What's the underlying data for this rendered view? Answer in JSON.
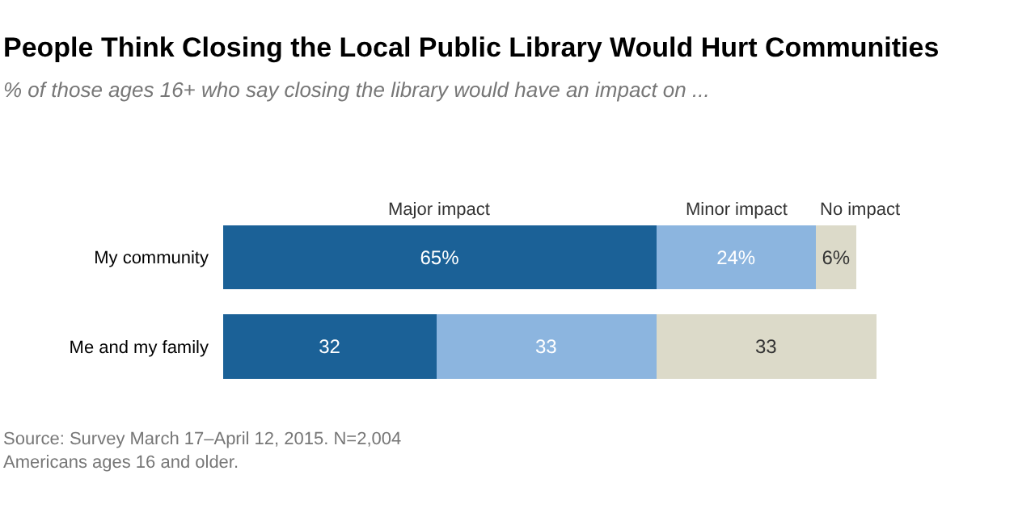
{
  "chart_data": {
    "type": "bar",
    "orientation": "horizontal",
    "stacked": true,
    "title": "People Think Closing the Local Public Library Would Hurt Communities",
    "subtitle": "% of those ages 16+ who say closing the library would have an impact on ...",
    "categories": [
      "My community",
      "Me and my family"
    ],
    "series": [
      {
        "name": "Major impact",
        "color": "#1b6197",
        "values": [
          65,
          32
        ],
        "value_labels": [
          "65%",
          "32"
        ]
      },
      {
        "name": "Minor impact",
        "color": "#8cb5df",
        "values": [
          24,
          33
        ],
        "value_labels": [
          "24%",
          "33"
        ]
      },
      {
        "name": "No impact",
        "color": "#dcdac9",
        "values": [
          6,
          33
        ],
        "value_labels": [
          "6%",
          "33"
        ]
      }
    ],
    "legend": false,
    "annotations": [
      "Source: Survey March 17–April 12, 2015. N=2,004\nAmericans ages 16 and older."
    ]
  }
}
